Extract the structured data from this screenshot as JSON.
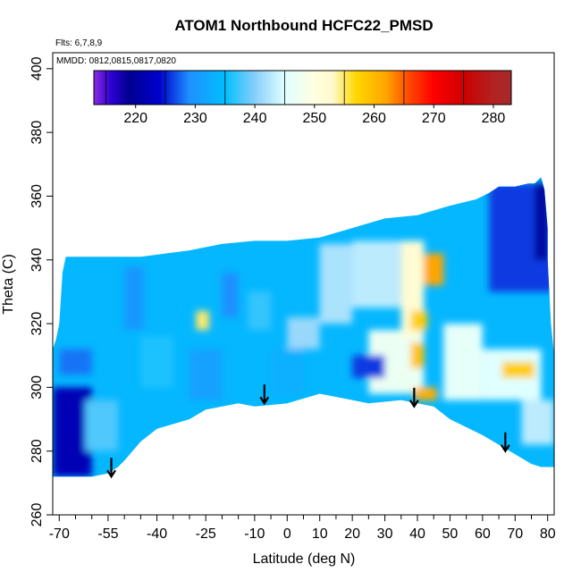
{
  "chart_data": {
    "type": "heatmap",
    "title": "ATOM1 Northbound HCFC22_PMSD",
    "flights_note": "Flts: 6,7,8,9",
    "dates_note": "MMDD: 0812,0815,0817,0820",
    "xlabel": "Latitude (deg N)",
    "ylabel": "Theta (C)",
    "xlim": [
      -72,
      82
    ],
    "ylim": [
      260,
      405
    ],
    "x_ticks": [
      -70,
      -55,
      -40,
      -25,
      -10,
      0,
      10,
      20,
      30,
      40,
      50,
      60,
      70,
      80
    ],
    "x_tick_labels": [
      "-70",
      "-55",
      "-40",
      "-25",
      "-10",
      "0",
      "10",
      "20",
      "30",
      "40",
      "50",
      "60",
      "70",
      "80"
    ],
    "x_minor_ticks": [
      -65,
      -60,
      -50,
      -45,
      -35,
      -30,
      -20,
      -15,
      -5,
      5,
      15,
      25,
      35,
      45,
      55,
      65,
      75
    ],
    "y_ticks": [
      260,
      280,
      300,
      320,
      340,
      360,
      380,
      400
    ],
    "y_tick_labels": [
      "260",
      "280",
      "300",
      "320",
      "340",
      "360",
      "380",
      "400"
    ],
    "colorbar": {
      "range": [
        213,
        283
      ],
      "ticks": [
        220,
        230,
        240,
        250,
        260,
        270,
        280
      ],
      "tick_labels": [
        "220",
        "230",
        "240",
        "250",
        "260",
        "270",
        "280"
      ],
      "stops": [
        {
          "value": 213,
          "color": "#8a2be2"
        },
        {
          "value": 216,
          "color": "#2a00d0"
        },
        {
          "value": 219,
          "color": "#000090"
        },
        {
          "value": 224,
          "color": "#0000cd"
        },
        {
          "value": 229,
          "color": "#1e90ff"
        },
        {
          "value": 235,
          "color": "#00bfff"
        },
        {
          "value": 240,
          "color": "#87cefa"
        },
        {
          "value": 245,
          "color": "#e0ffff"
        },
        {
          "value": 250,
          "color": "#ffffe0"
        },
        {
          "value": 253,
          "color": "#fffacd"
        },
        {
          "value": 257,
          "color": "#ffd700"
        },
        {
          "value": 262,
          "color": "#ffa500"
        },
        {
          "value": 266,
          "color": "#ff4500"
        },
        {
          "value": 270,
          "color": "#ff0000"
        },
        {
          "value": 275,
          "color": "#cc0000"
        },
        {
          "value": 280,
          "color": "#b22222"
        },
        {
          "value": 283,
          "color": "#a52a2a"
        }
      ]
    },
    "coverage_upper": [
      [
        -72,
        312
      ],
      [
        -71,
        315
      ],
      [
        -70,
        320
      ],
      [
        -69,
        336
      ],
      [
        -68,
        341
      ],
      [
        -55,
        341
      ],
      [
        -45,
        341
      ],
      [
        -30,
        343
      ],
      [
        -20,
        345
      ],
      [
        -10,
        346
      ],
      [
        0,
        346
      ],
      [
        10,
        347
      ],
      [
        20,
        350
      ],
      [
        30,
        353
      ],
      [
        40,
        354
      ],
      [
        50,
        357
      ],
      [
        58,
        359
      ],
      [
        62,
        361
      ],
      [
        65,
        363
      ],
      [
        70,
        363
      ],
      [
        74,
        364
      ],
      [
        76,
        364
      ],
      [
        78,
        366
      ],
      [
        79,
        362
      ],
      [
        80,
        350
      ],
      [
        80,
        340
      ],
      [
        81,
        320
      ],
      [
        82,
        310
      ],
      [
        82,
        290
      ],
      [
        82,
        278
      ]
    ],
    "coverage_lower": [
      [
        82,
        275
      ],
      [
        78,
        275
      ],
      [
        75,
        276
      ],
      [
        70,
        279
      ],
      [
        60,
        285
      ],
      [
        50,
        290
      ],
      [
        45,
        294
      ],
      [
        35,
        296
      ],
      [
        25,
        295
      ],
      [
        20,
        296
      ],
      [
        10,
        298
      ],
      [
        0,
        295
      ],
      [
        -10,
        294
      ],
      [
        -15,
        295
      ],
      [
        -25,
        293
      ],
      [
        -30,
        290
      ],
      [
        -40,
        287
      ],
      [
        -45,
        283
      ],
      [
        -50,
        277
      ],
      [
        -52,
        275
      ],
      [
        -55,
        273
      ],
      [
        -60,
        272
      ],
      [
        -65,
        272
      ],
      [
        -72,
        272
      ]
    ],
    "background_value": 234,
    "regions": [
      {
        "x": [
          -72,
          -60
        ],
        "y": [
          272,
          300
        ],
        "value": 222
      },
      {
        "x": [
          -62,
          -52
        ],
        "y": [
          280,
          296
        ],
        "value": 238
      },
      {
        "x": [
          -70,
          -60
        ],
        "y": [
          304,
          312
        ],
        "value": 228
      },
      {
        "x": [
          -50,
          -44
        ],
        "y": [
          318,
          338
        ],
        "value": 230
      },
      {
        "x": [
          -28,
          -24
        ],
        "y": [
          318,
          324
        ],
        "value": 255
      },
      {
        "x": [
          -20,
          -15
        ],
        "y": [
          322,
          336
        ],
        "value": 229
      },
      {
        "x": [
          -12,
          -5
        ],
        "y": [
          318,
          330
        ],
        "value": 237
      },
      {
        "x": [
          0,
          10
        ],
        "y": [
          312,
          322
        ],
        "value": 241
      },
      {
        "x": [
          10,
          20
        ],
        "y": [
          320,
          345
        ],
        "value": 242
      },
      {
        "x": [
          20,
          35
        ],
        "y": [
          325,
          346
        ],
        "value": 243
      },
      {
        "x": [
          25,
          42
        ],
        "y": [
          298,
          318
        ],
        "value": 247
      },
      {
        "x": [
          35,
          42
        ],
        "y": [
          316,
          346
        ],
        "value": 252
      },
      {
        "x": [
          42,
          48
        ],
        "y": [
          332,
          342
        ],
        "value": 262
      },
      {
        "x": [
          38,
          43
        ],
        "y": [
          318,
          324
        ],
        "value": 258
      },
      {
        "x": [
          38,
          42
        ],
        "y": [
          306,
          314
        ],
        "value": 259
      },
      {
        "x": [
          39,
          46
        ],
        "y": [
          296,
          300
        ],
        "value": 261
      },
      {
        "x": [
          48,
          60
        ],
        "y": [
          296,
          320
        ],
        "value": 246
      },
      {
        "x": [
          60,
          78
        ],
        "y": [
          296,
          312
        ],
        "value": 245
      },
      {
        "x": [
          66,
          76
        ],
        "y": [
          303,
          308
        ],
        "value": 258
      },
      {
        "x": [
          72,
          82
        ],
        "y": [
          282,
          296
        ],
        "value": 243
      },
      {
        "x": [
          62,
          82
        ],
        "y": [
          330,
          364
        ],
        "value": 226
      },
      {
        "x": [
          76,
          80
        ],
        "y": [
          340,
          364
        ],
        "value": 220
      },
      {
        "x": [
          -30,
          -20
        ],
        "y": [
          296,
          312
        ],
        "value": 231
      },
      {
        "x": [
          -45,
          -35
        ],
        "y": [
          300,
          316
        ],
        "value": 236
      },
      {
        "x": [
          -5,
          5
        ],
        "y": [
          298,
          312
        ],
        "value": 233
      },
      {
        "x": [
          20,
          30
        ],
        "y": [
          303,
          310
        ],
        "value": 226
      }
    ],
    "flight_markers": [
      {
        "x": -54,
        "y": 272
      },
      {
        "x": -7,
        "y": 295
      },
      {
        "x": 39,
        "y": 294
      },
      {
        "x": 67,
        "y": 280
      }
    ]
  }
}
